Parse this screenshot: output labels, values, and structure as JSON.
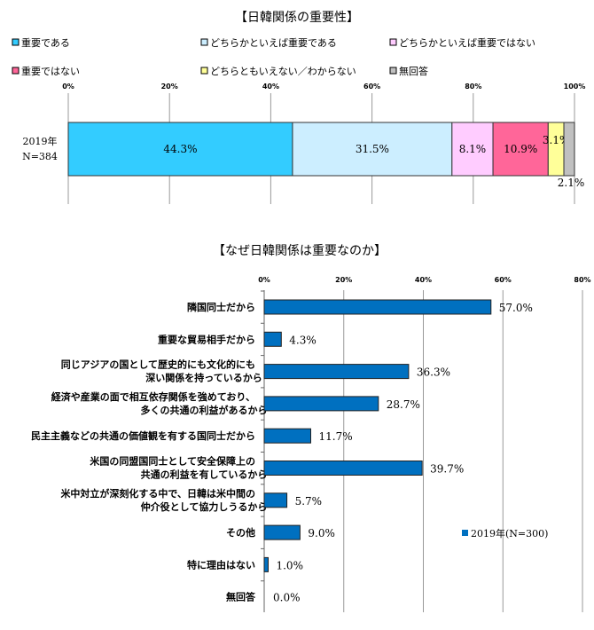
{
  "chart_data": [
    {
      "type": "bar",
      "orientation": "horizontal",
      "stacked": true,
      "title": "【日韓関係の重要性】",
      "categories": [
        "2019年",
        "N=384"
      ],
      "series": [
        {
          "name": "重要である",
          "value": 44.3,
          "label": "44.3%",
          "color": "#33CCFF"
        },
        {
          "name": "どちらかといえば重要である",
          "value": 31.5,
          "label": "31.5%",
          "color": "#CCEEFF"
        },
        {
          "name": "どちらかといえば重要ではない",
          "value": 8.1,
          "label": "8.1%",
          "color": "#FFCCFF"
        },
        {
          "name": "重要ではない",
          "value": 10.9,
          "label": "10.9%",
          "color": "#FF6699"
        },
        {
          "name": "どちらともいえない／わからない",
          "value": 3.1,
          "label": "3.1%",
          "color": "#FFFF99"
        },
        {
          "name": "無回答",
          "value": 2.1,
          "label": "2.1%",
          "color": "#C0C0C0"
        }
      ],
      "xlim": [
        0,
        100
      ],
      "ticks": [
        "0%",
        "20%",
        "40%",
        "60%",
        "80%",
        "100%"
      ],
      "grid": true,
      "legend": "top"
    },
    {
      "type": "bar",
      "orientation": "horizontal",
      "title": "【なぜ日韓関係は重要なのか】",
      "categories": [
        [
          "隣国同士だから"
        ],
        [
          "重要な貿易相手だから"
        ],
        [
          "同じアジアの国として歴史的にも文化的にも",
          "深い関係を持っているから"
        ],
        [
          "経済や産業の面で相互依存関係を強めており、",
          "多くの共通の利益があるから"
        ],
        [
          "民主主義などの共通の価値観を有する国同士だから"
        ],
        [
          "米国の同盟国同士として安全保障上の",
          "共通の利益を有しているから"
        ],
        [
          "米中対立が深刻化する中で、日韓は米中間の",
          "仲介役として協力しうるから"
        ],
        [
          "その他"
        ],
        [
          "特に理由はない"
        ],
        [
          "無回答"
        ]
      ],
      "series": [
        {
          "name": "2019年(N=300)",
          "color": "#0070C0",
          "values": [
            57.0,
            4.3,
            36.3,
            28.7,
            11.7,
            39.7,
            5.7,
            9.0,
            1.0,
            0.0
          ],
          "labels": [
            "57.0%",
            "4.3%",
            "36.3%",
            "28.7%",
            "11.7%",
            "39.7%",
            "5.7%",
            "9.0%",
            "1.0%",
            "0.0%"
          ]
        }
      ],
      "xlim": [
        0,
        80
      ],
      "ticks": [
        "0%",
        "20%",
        "40%",
        "60%",
        "80%"
      ],
      "grid": true,
      "legend": "inside-right"
    }
  ]
}
